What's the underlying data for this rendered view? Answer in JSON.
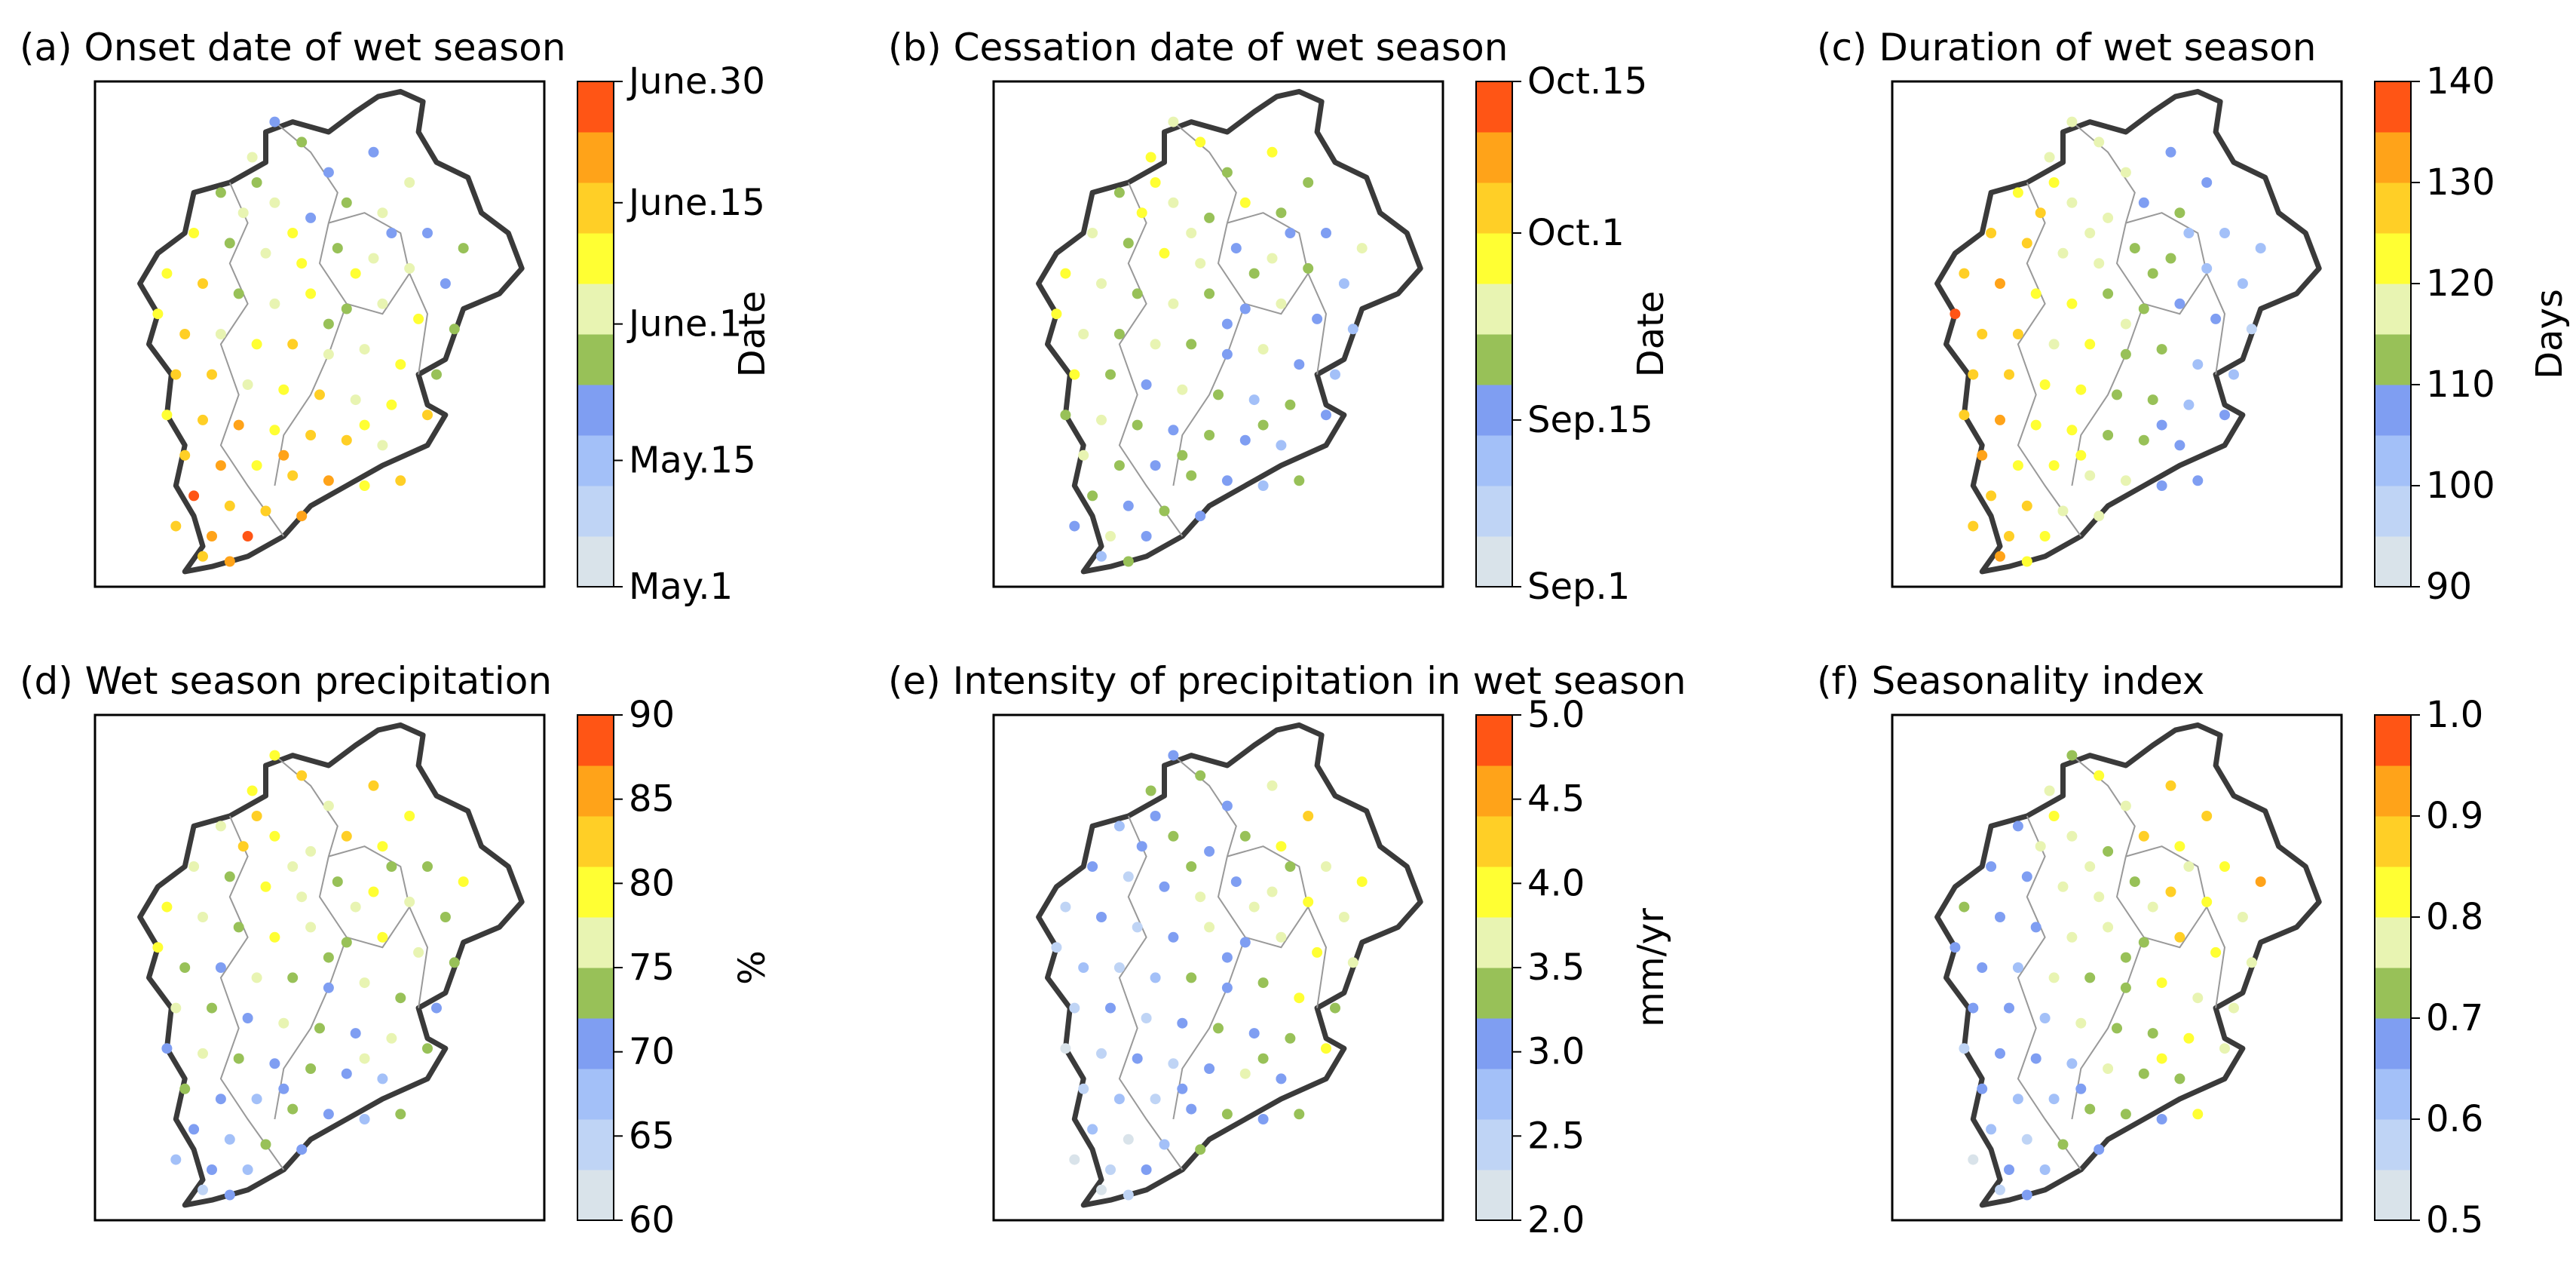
{
  "colors": [
    "#d9e3ea",
    "#bfd4f5",
    "#a3c0f8",
    "#7f9ef2",
    "#98c158",
    "#e8f4b2",
    "#ffff33",
    "#ffcf26",
    "#ffa319",
    "#ff5515"
  ],
  "panels": [
    {
      "id": "a",
      "title": "(a) Onset date of wet season",
      "cb_label": "Date",
      "ticks": [
        "May.1",
        "May.15",
        "June.1",
        "June.15",
        "June.30"
      ],
      "tick_positions": [
        0,
        0.25,
        0.52,
        0.76,
        1.0
      ],
      "value_map": "onset"
    },
    {
      "id": "b",
      "title": "(b) Cessation date of wet season",
      "cb_label": "Date",
      "ticks": [
        "Sep.1",
        "Sep.15",
        "Oct.1",
        "Oct.15"
      ],
      "tick_positions": [
        0,
        0.33,
        0.7,
        1.0
      ],
      "value_map": "cessation"
    },
    {
      "id": "c",
      "title": "(c) Duration of wet season",
      "cb_label": "Days",
      "ticks": [
        "90",
        "100",
        "110",
        "120",
        "130",
        "140"
      ],
      "tick_positions": [
        0,
        0.2,
        0.4,
        0.6,
        0.8,
        1.0
      ],
      "value_map": "duration"
    },
    {
      "id": "d",
      "title": "(d) Wet season precipitation",
      "cb_label": "%",
      "ticks": [
        "60",
        "65",
        "70",
        "75",
        "80",
        "85",
        "90"
      ],
      "tick_positions": [
        0,
        0.1667,
        0.3333,
        0.5,
        0.6667,
        0.8333,
        1.0
      ],
      "value_map": "precip"
    },
    {
      "id": "e",
      "title": "(e) Intensity of precipitation in wet season",
      "cb_label": "mm/yr",
      "ticks": [
        "2.0",
        "2.5",
        "3.0",
        "3.5",
        "4.0",
        "4.5",
        "5.0"
      ],
      "tick_positions": [
        0,
        0.1667,
        0.3333,
        0.5,
        0.6667,
        0.8333,
        1.0
      ],
      "value_map": "intensity"
    },
    {
      "id": "f",
      "title": "(f) Seasonality index",
      "cb_label": "",
      "ticks": [
        "0.5",
        "0.6",
        "0.7",
        "0.8",
        "0.9",
        "1.0"
      ],
      "tick_positions": [
        0,
        0.2,
        0.4,
        0.6,
        0.8,
        1.0
      ],
      "value_map": "seasonality"
    }
  ],
  "stations": [
    [
      0.4,
      0.08
    ],
    [
      0.46,
      0.12
    ],
    [
      0.35,
      0.15
    ],
    [
      0.52,
      0.18
    ],
    [
      0.62,
      0.14
    ],
    [
      0.7,
      0.2
    ],
    [
      0.28,
      0.22
    ],
    [
      0.33,
      0.26
    ],
    [
      0.4,
      0.24
    ],
    [
      0.48,
      0.27
    ],
    [
      0.56,
      0.24
    ],
    [
      0.64,
      0.26
    ],
    [
      0.74,
      0.3
    ],
    [
      0.82,
      0.33
    ],
    [
      0.22,
      0.3
    ],
    [
      0.3,
      0.32
    ],
    [
      0.38,
      0.34
    ],
    [
      0.46,
      0.36
    ],
    [
      0.54,
      0.33
    ],
    [
      0.62,
      0.35
    ],
    [
      0.7,
      0.37
    ],
    [
      0.78,
      0.4
    ],
    [
      0.16,
      0.38
    ],
    [
      0.24,
      0.4
    ],
    [
      0.32,
      0.42
    ],
    [
      0.4,
      0.44
    ],
    [
      0.48,
      0.42
    ],
    [
      0.56,
      0.45
    ],
    [
      0.64,
      0.44
    ],
    [
      0.72,
      0.47
    ],
    [
      0.8,
      0.49
    ],
    [
      0.14,
      0.46
    ],
    [
      0.2,
      0.5
    ],
    [
      0.28,
      0.5
    ],
    [
      0.36,
      0.52
    ],
    [
      0.44,
      0.52
    ],
    [
      0.52,
      0.54
    ],
    [
      0.6,
      0.53
    ],
    [
      0.68,
      0.56
    ],
    [
      0.76,
      0.58
    ],
    [
      0.18,
      0.58
    ],
    [
      0.26,
      0.58
    ],
    [
      0.34,
      0.6
    ],
    [
      0.42,
      0.61
    ],
    [
      0.5,
      0.62
    ],
    [
      0.58,
      0.63
    ],
    [
      0.66,
      0.64
    ],
    [
      0.74,
      0.66
    ],
    [
      0.16,
      0.66
    ],
    [
      0.24,
      0.67
    ],
    [
      0.32,
      0.68
    ],
    [
      0.4,
      0.69
    ],
    [
      0.48,
      0.7
    ],
    [
      0.56,
      0.71
    ],
    [
      0.64,
      0.72
    ],
    [
      0.2,
      0.74
    ],
    [
      0.28,
      0.76
    ],
    [
      0.36,
      0.76
    ],
    [
      0.44,
      0.78
    ],
    [
      0.52,
      0.79
    ],
    [
      0.6,
      0.8
    ],
    [
      0.68,
      0.79
    ],
    [
      0.22,
      0.82
    ],
    [
      0.3,
      0.84
    ],
    [
      0.38,
      0.85
    ],
    [
      0.46,
      0.86
    ],
    [
      0.18,
      0.88
    ],
    [
      0.26,
      0.9
    ],
    [
      0.34,
      0.9
    ],
    [
      0.24,
      0.94
    ],
    [
      0.3,
      0.95
    ],
    [
      0.58,
      0.38
    ],
    [
      0.66,
      0.3
    ],
    [
      0.36,
      0.2
    ],
    [
      0.44,
      0.3
    ],
    [
      0.52,
      0.48
    ],
    [
      0.6,
      0.68
    ],
    [
      0.42,
      0.74
    ]
  ]
}
